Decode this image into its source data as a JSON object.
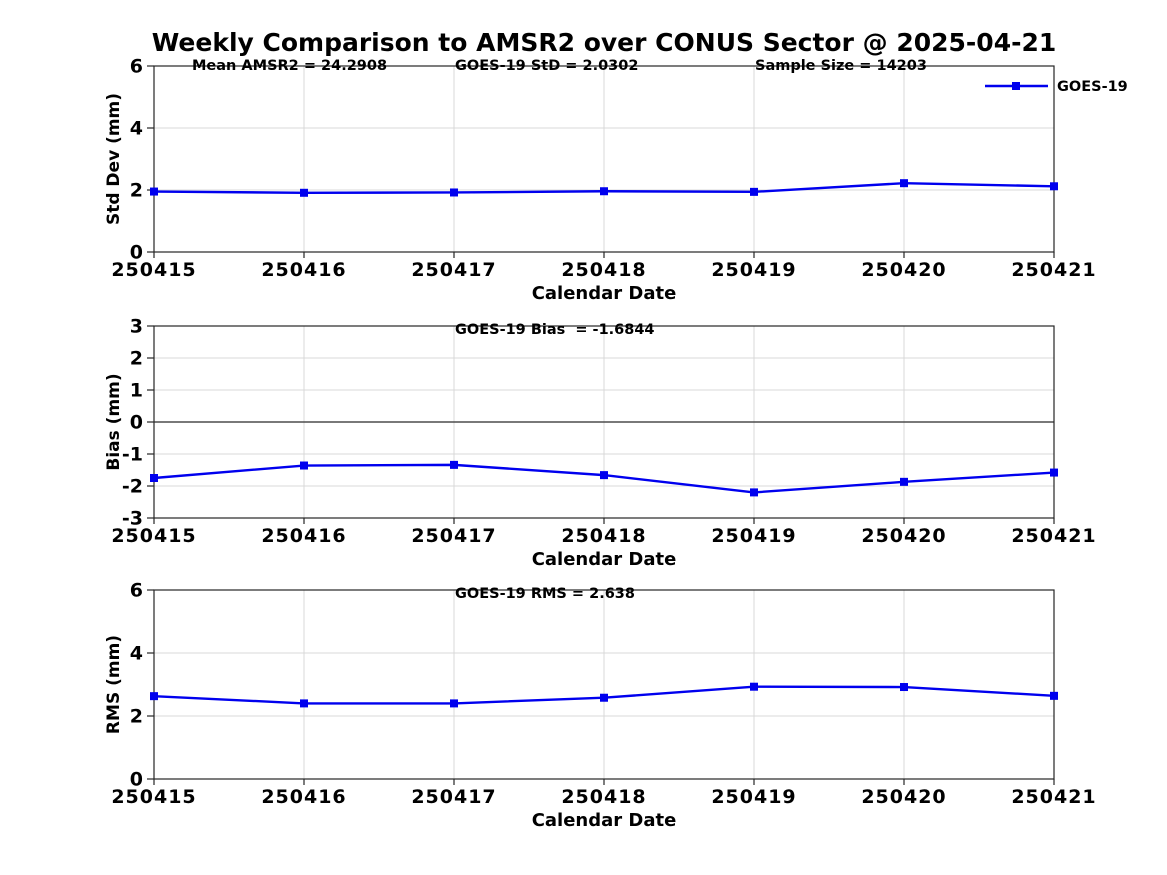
{
  "title": "Weekly Comparison to AMSR2 over CONUS Sector @ 2025-04-21",
  "legend": {
    "label": "GOES-19",
    "position": "top-right"
  },
  "colors": {
    "line": "#0000EE",
    "grid": "#D8D8D8",
    "axis": "#262626",
    "zero_line": "#4D4D4D",
    "text": "#000000",
    "background": "#FFFFFF"
  },
  "x_axis": {
    "label": "Calendar Date",
    "categories": [
      "250415",
      "250416",
      "250417",
      "250418",
      "250419",
      "250420",
      "250421"
    ]
  },
  "chart_data": [
    {
      "type": "line",
      "name": "stddev",
      "ylabel": "Std Dev (mm)",
      "ylim": [
        0,
        6
      ],
      "yticks": [
        0,
        2,
        4,
        6
      ],
      "grid": true,
      "annotations": [
        "Mean AMSR2 = 24.2908",
        "GOES-19 StD = 2.0302",
        "Sample Size = 14203"
      ],
      "categories": [
        "250415",
        "250416",
        "250417",
        "250418",
        "250419",
        "250420",
        "250421"
      ],
      "series": [
        {
          "name": "GOES-19",
          "values": [
            1.95,
            1.91,
            1.92,
            1.96,
            1.94,
            2.22,
            2.12
          ]
        }
      ],
      "legend_visible": true
    },
    {
      "type": "line",
      "name": "bias",
      "ylabel": "Bias (mm)",
      "ylim": [
        -3,
        3
      ],
      "yticks": [
        -3,
        -2,
        -1,
        0,
        1,
        2,
        3
      ],
      "grid": true,
      "zero_line": true,
      "annotations": [
        "GOES-19 Bias  = -1.6844"
      ],
      "categories": [
        "250415",
        "250416",
        "250417",
        "250418",
        "250419",
        "250420",
        "250421"
      ],
      "series": [
        {
          "name": "GOES-19",
          "values": [
            -1.75,
            -1.36,
            -1.34,
            -1.66,
            -2.2,
            -1.87,
            -1.58
          ]
        }
      ],
      "legend_visible": false
    },
    {
      "type": "line",
      "name": "rms",
      "ylabel": "RMS (mm)",
      "ylim": [
        0,
        6
      ],
      "yticks": [
        0,
        2,
        4,
        6
      ],
      "grid": true,
      "annotations": [
        "GOES-19 RMS = 2.638"
      ],
      "categories": [
        "250415",
        "250416",
        "250417",
        "250418",
        "250419",
        "250420",
        "250421"
      ],
      "series": [
        {
          "name": "GOES-19",
          "values": [
            2.63,
            2.4,
            2.4,
            2.58,
            2.93,
            2.92,
            2.64
          ]
        }
      ],
      "legend_visible": false
    }
  ]
}
